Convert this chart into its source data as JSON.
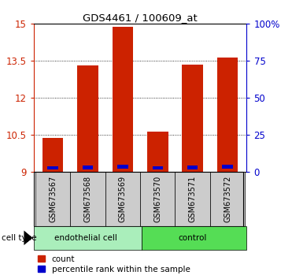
{
  "title": "GDS4461 / 100609_at",
  "samples": [
    "GSM673567",
    "GSM673568",
    "GSM673569",
    "GSM673570",
    "GSM673571",
    "GSM673572"
  ],
  "bar_tops": [
    10.35,
    13.3,
    14.87,
    10.62,
    13.33,
    13.63
  ],
  "blue_bottoms": [
    9.08,
    9.1,
    9.12,
    9.08,
    9.1,
    9.12
  ],
  "blue_tops": [
    9.23,
    9.25,
    9.27,
    9.23,
    9.25,
    9.27
  ],
  "base": 9.0,
  "ylim": [
    9.0,
    15.0
  ],
  "yticks": [
    9,
    10.5,
    12,
    13.5,
    15
  ],
  "ytick_labels": [
    "9",
    "10.5",
    "12",
    "13.5",
    "15"
  ],
  "y2ticks": [
    0,
    25,
    50,
    75,
    100
  ],
  "y2tick_labels": [
    "0",
    "25",
    "50",
    "75",
    "100%"
  ],
  "bar_color": "#cc2200",
  "blue_color": "#0000cc",
  "group1_label": "endothelial cell",
  "group2_label": "control",
  "group1_color": "#aaeebb",
  "group2_color": "#55dd55",
  "cell_type_label": "cell type",
  "legend_red": "count",
  "legend_blue": "percentile rank within the sample",
  "left_axis_color": "#cc2200",
  "right_axis_color": "#0000cc",
  "label_bg": "#cccccc",
  "plot_bg": "#ffffff"
}
